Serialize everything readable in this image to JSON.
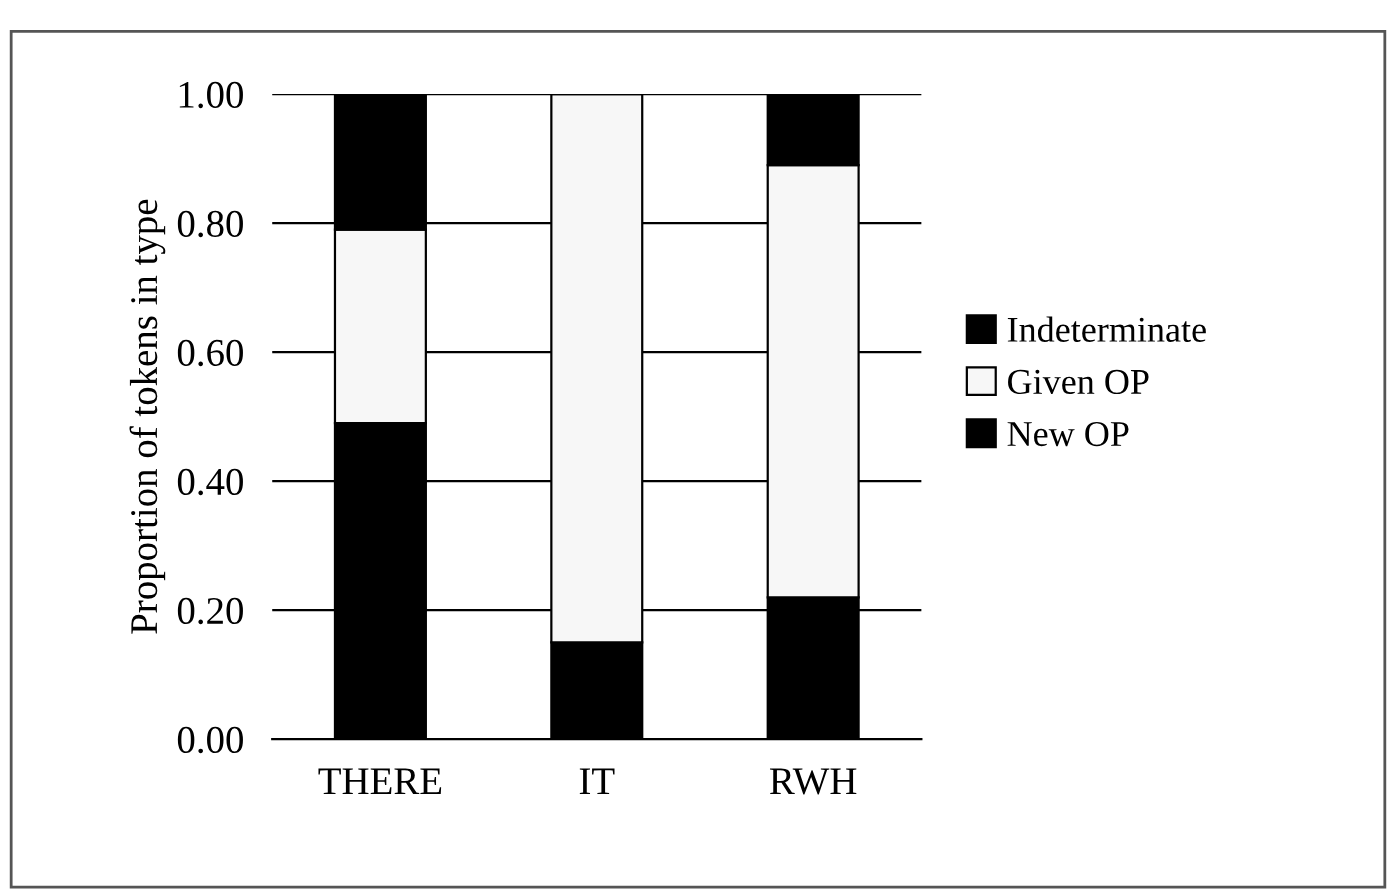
{
  "chart_data": {
    "type": "bar",
    "stacked": true,
    "ylabel": "Proportion of tokens in type",
    "categories": [
      "THERE",
      "IT",
      "RWH"
    ],
    "series": [
      {
        "name": "New OP",
        "color": "#000000",
        "values": [
          0.49,
          0.15,
          0.22
        ]
      },
      {
        "name": "Given OP",
        "color": "#f7f7f7",
        "values": [
          0.3,
          0.85,
          0.67
        ]
      },
      {
        "name": "Indeterminate",
        "color": "#000000",
        "values": [
          0.21,
          0.0,
          0.11
        ]
      }
    ],
    "ylim": [
      0,
      1
    ],
    "yticks": [
      {
        "value": 0,
        "label": "0.00"
      },
      {
        "value": 0.2,
        "label": "0.20"
      },
      {
        "value": 0.4,
        "label": "0.40"
      },
      {
        "value": 0.6,
        "label": "0.60"
      },
      {
        "value": 0.8,
        "label": "0.80"
      },
      {
        "value": 1.0,
        "label": "1.00"
      }
    ],
    "grid": "y",
    "legend": "right"
  }
}
